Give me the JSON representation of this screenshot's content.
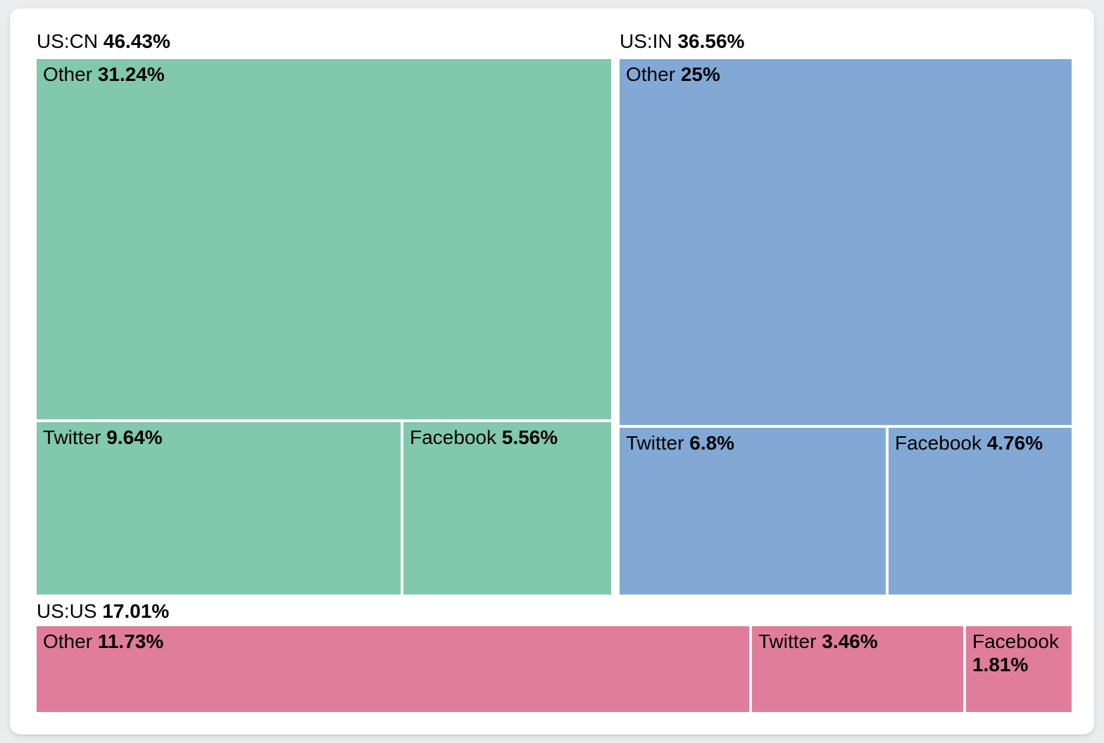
{
  "chart_data": {
    "type": "treemap",
    "title": "",
    "unit": "%",
    "layout": "three groups; two large groups on top row, one flat group on bottom row; parent label above each group's cells",
    "groups": [
      {
        "label": "US:CN",
        "value": 46.43,
        "value_display": "46.43%",
        "color": "#81C8AD",
        "children": [
          {
            "label": "Other",
            "value": 31.24,
            "value_display": "31.24%"
          },
          {
            "label": "Twitter",
            "value": 9.64,
            "value_display": "9.64%"
          },
          {
            "label": "Facebook",
            "value": 5.56,
            "value_display": "5.56%"
          }
        ]
      },
      {
        "label": "US:IN",
        "value": 36.56,
        "value_display": "36.56%",
        "color": "#82A9D6",
        "children": [
          {
            "label": "Other",
            "value": 25,
            "value_display": "25%"
          },
          {
            "label": "Twitter",
            "value": 6.8,
            "value_display": "6.8%"
          },
          {
            "label": "Facebook",
            "value": 4.76,
            "value_display": "4.76%"
          }
        ]
      },
      {
        "label": "US:US",
        "value": 17.01,
        "value_display": "17.01%",
        "color": "#E07D9C",
        "children": [
          {
            "label": "Other",
            "value": 11.73,
            "value_display": "11.73%"
          },
          {
            "label": "Twitter",
            "value": 3.46,
            "value_display": "3.46%"
          },
          {
            "label": "Facebook",
            "value": 1.81,
            "value_display": "1.81%"
          }
        ]
      }
    ],
    "text_color": "#000000",
    "background_color": "#ffffff",
    "page_background_color": "#ebecee"
  }
}
